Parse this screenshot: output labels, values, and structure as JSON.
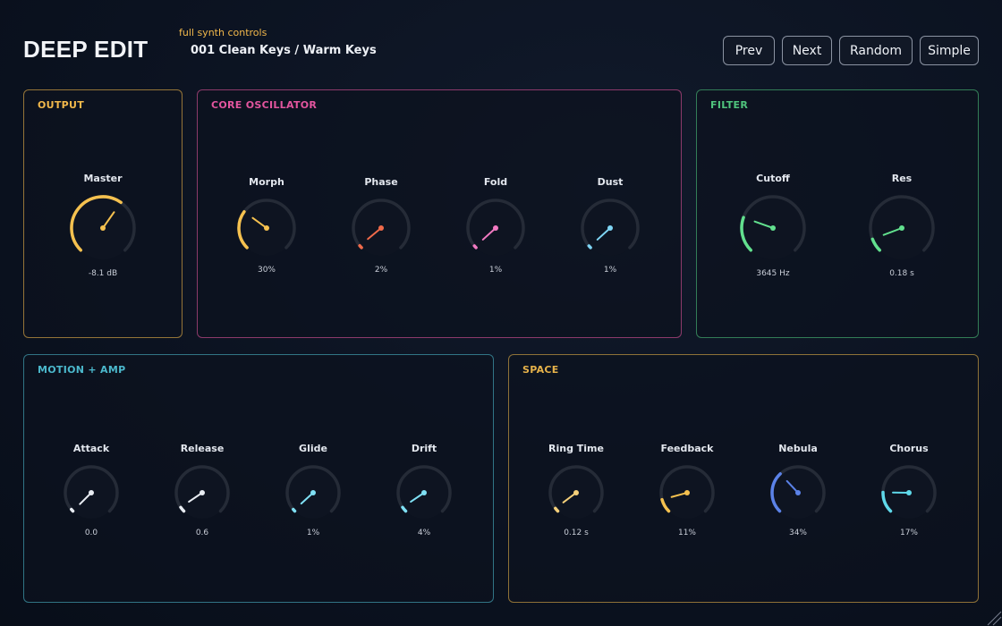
{
  "header": {
    "title": "DEEP EDIT",
    "subtitle": "full synth controls",
    "preset": "001  Clean Keys / Warm Keys",
    "buttons": {
      "prev": "Prev",
      "next": "Next",
      "random": "Random",
      "simple": "Simple"
    }
  },
  "panels": [
    {
      "id": "output",
      "title": "OUTPUT",
      "color": "#f2b84b",
      "knobs": [
        {
          "label": "Master",
          "value": "-8.1 dB",
          "level": 0.63,
          "color": "#f5c14f",
          "track": "#252b37"
        }
      ]
    },
    {
      "id": "core-oscillator",
      "title": "CORE OSCILLATOR",
      "color": "#e2559e",
      "knobs": [
        {
          "label": "Morph",
          "value": "30%",
          "level": 0.3,
          "color": "#f5c14f",
          "track": "#252b37"
        },
        {
          "label": "Phase",
          "value": "2%",
          "level": 0.02,
          "color": "#ef6a4a",
          "track": "#252b37"
        },
        {
          "label": "Fold",
          "value": "1%",
          "level": 0.01,
          "color": "#f27ac2",
          "track": "#252b37"
        },
        {
          "label": "Dust",
          "value": "1%",
          "level": 0.01,
          "color": "#7fd5f4",
          "track": "#252b37"
        }
      ]
    },
    {
      "id": "filter",
      "title": "FILTER",
      "color": "#4fc47d",
      "knobs": [
        {
          "label": "Cutoff",
          "value": "3645 Hz",
          "level": 0.24,
          "color": "#62e08e",
          "track": "#252b37"
        },
        {
          "label": "Res",
          "value": "0.18 s",
          "level": 0.09,
          "color": "#62e08e",
          "track": "#252b37"
        }
      ]
    },
    {
      "id": "motion-amp",
      "title": "MOTION + AMP",
      "color": "#4bb8cc",
      "knobs": [
        {
          "label": "Attack",
          "value": "0.0",
          "level": 0.0,
          "color": "#e8ecf2",
          "track": "#252b37"
        },
        {
          "label": "Release",
          "value": "0.6",
          "level": 0.04,
          "color": "#e8ecf2",
          "track": "#252b37"
        },
        {
          "label": "Glide",
          "value": "1%",
          "level": 0.01,
          "color": "#7fe0f4",
          "track": "#252b37"
        },
        {
          "label": "Drift",
          "value": "4%",
          "level": 0.04,
          "color": "#7fe0f4",
          "track": "#252b37"
        }
      ]
    },
    {
      "id": "space",
      "title": "SPACE",
      "color": "#e6b24a",
      "knobs": [
        {
          "label": "Ring Time",
          "value": "0.12 s",
          "level": 0.03,
          "color": "#f5d07a",
          "track": "#252b37"
        },
        {
          "label": "Feedback",
          "value": "11%",
          "level": 0.11,
          "color": "#f5c14f",
          "track": "#252b37"
        },
        {
          "label": "Nebula",
          "value": "34%",
          "level": 0.34,
          "color": "#5b82e8",
          "track": "#252b37"
        },
        {
          "label": "Chorus",
          "value": "17%",
          "level": 0.17,
          "color": "#5fd9ea",
          "track": "#252b37"
        }
      ]
    }
  ]
}
